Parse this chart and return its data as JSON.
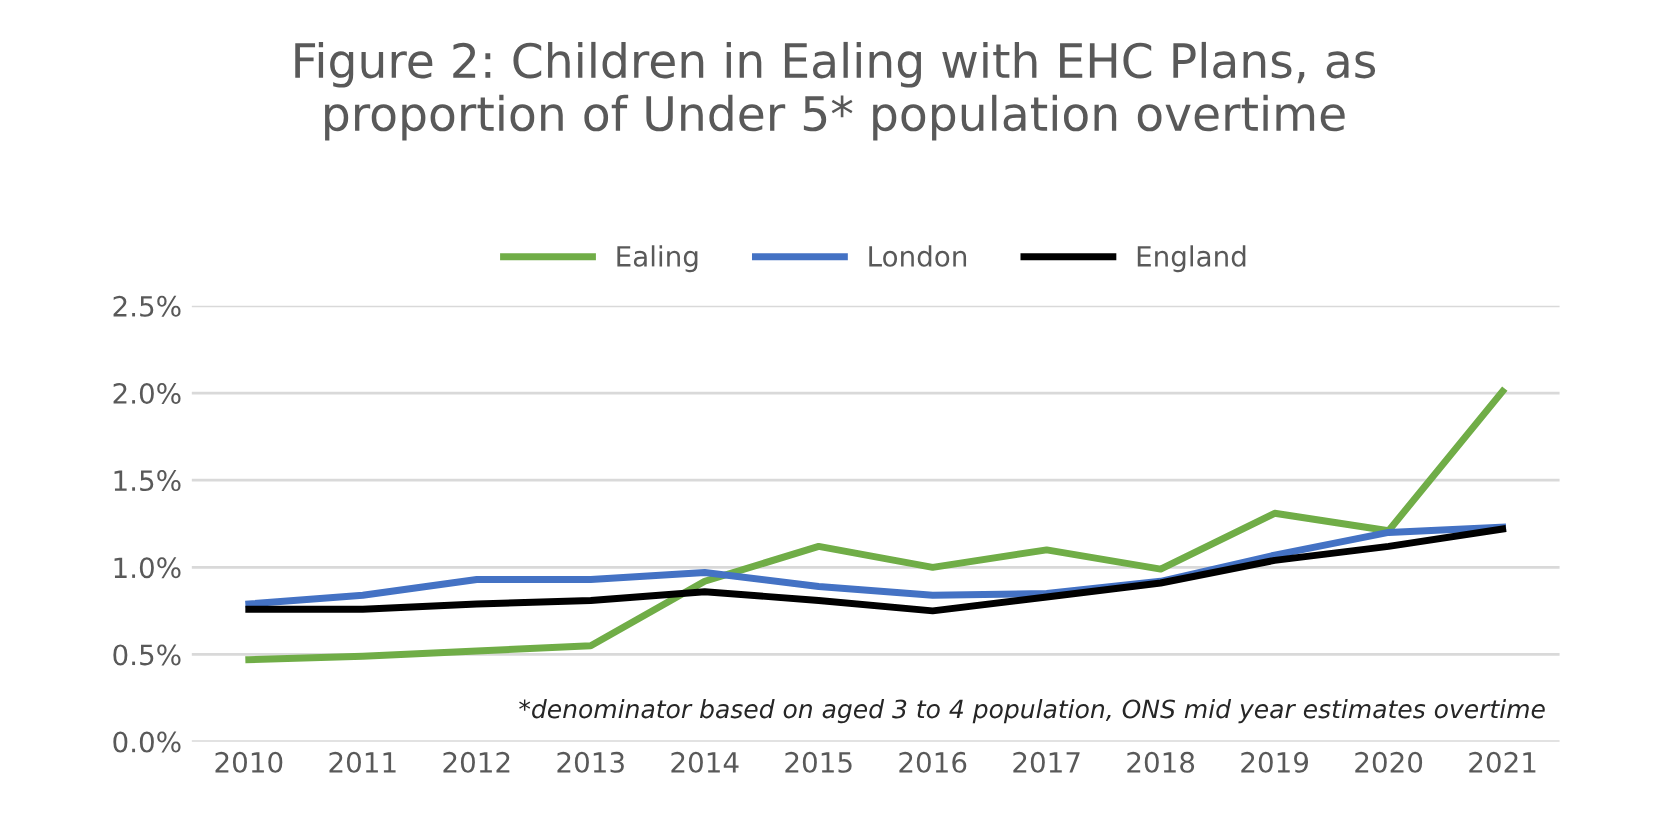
{
  "chart_data": {
    "type": "line",
    "title": "Figure 2: Children in Ealing with EHC Plans, as\nproportion of Under 5* population overtime",
    "categories": [
      "2010",
      "2011",
      "2012",
      "2013",
      "2014",
      "2015",
      "2016",
      "2017",
      "2018",
      "2019",
      "2020",
      "2021"
    ],
    "series": [
      {
        "name": "Ealing",
        "color": "#70ad47",
        "values": [
          0.47,
          0.49,
          0.52,
          0.55,
          0.92,
          1.12,
          1.0,
          1.1,
          0.99,
          1.31,
          1.21,
          2.01
        ]
      },
      {
        "name": "London",
        "color": "#4472c4",
        "values": [
          0.79,
          0.84,
          0.93,
          0.93,
          0.97,
          0.89,
          0.84,
          0.85,
          0.92,
          1.07,
          1.2,
          1.23
        ]
      },
      {
        "name": "England",
        "color": "#000000",
        "values": [
          0.76,
          0.76,
          0.79,
          0.81,
          0.86,
          0.81,
          0.75,
          0.83,
          0.91,
          1.04,
          1.12,
          1.22
        ]
      }
    ],
    "ylim": [
      0,
      2.5
    ],
    "yticks": [
      {
        "value": 0,
        "label": "0.0%"
      },
      {
        "value": 0.5,
        "label": "0.5%"
      },
      {
        "value": 1.0,
        "label": "1.0%"
      },
      {
        "value": 1.5,
        "label": "1.5%"
      },
      {
        "value": 2.0,
        "label": "2.0%"
      },
      {
        "value": 2.5,
        "label": "2.5%"
      }
    ],
    "grid": "y",
    "legend": "top",
    "marker": "none",
    "line_style": "solid",
    "annotations": [
      "*denominator based on aged 3 to 4 population, ONS mid year estimates overtime"
    ]
  }
}
